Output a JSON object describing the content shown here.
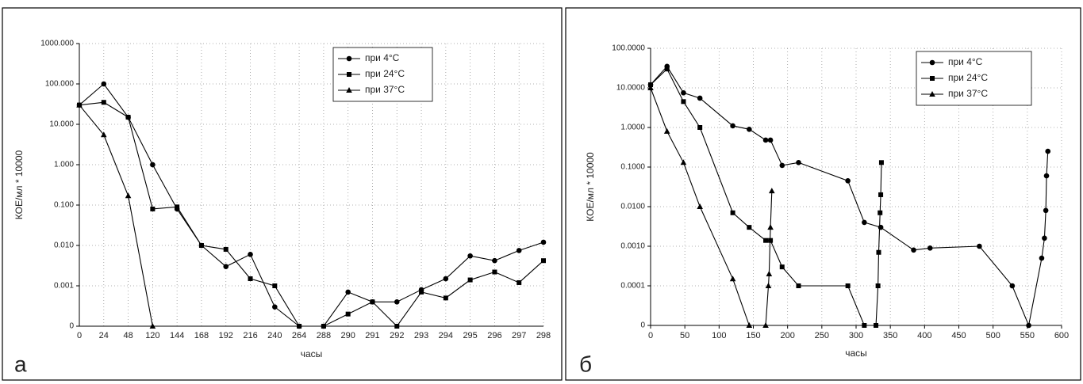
{
  "chart_data": [
    {
      "type": "line",
      "panel_label": "а",
      "x_label": "часы",
      "y_label": "КОЕ/мл * 10000",
      "categories": [
        "0",
        "24",
        "48",
        "120",
        "144",
        "168",
        "192",
        "216",
        "240",
        "264",
        "288",
        "290",
        "291",
        "292",
        "293",
        "294",
        "295",
        "296",
        "297",
        "298"
      ],
      "ylim": [
        0,
        1000
      ],
      "log_scale": true,
      "grid": true,
      "legend": "top-right",
      "yticks": [
        {
          "value": 1000,
          "label": "1000.000"
        },
        {
          "value": 100,
          "label": "100.000"
        },
        {
          "value": 10,
          "label": "10.000"
        },
        {
          "value": 1,
          "label": "1.000"
        },
        {
          "value": 0.1,
          "label": "0.100"
        },
        {
          "value": 0.01,
          "label": "0.010"
        },
        {
          "value": 0.001,
          "label": "0.001"
        },
        0
      ],
      "series": [
        {
          "name": "при 4°C",
          "color": "#000000",
          "marker": "circle",
          "values": [
            30,
            100,
            15,
            1.0,
            0.08,
            0.01,
            0.003,
            0.006,
            0.0003,
            0,
            0,
            0.0007,
            0.0004,
            0.0004,
            0.0008,
            0.0015,
            0.0055,
            0.0042,
            0.0075,
            0.012
          ]
        },
        {
          "name": "при 24°C",
          "color": "#000000",
          "marker": "square",
          "values": [
            30,
            35,
            15,
            0.08,
            0.09,
            0.01,
            0.008,
            0.0015,
            0.001,
            0,
            0,
            0.0002,
            0.0004,
            0,
            0.0007,
            0.0005,
            0.0014,
            0.0022,
            0.0012,
            0.0042
          ]
        },
        {
          "name": "при 37°C",
          "color": "#000000",
          "marker": "triangle",
          "values": [
            30,
            5.5,
            0.17,
            0,
            null,
            null,
            null,
            null,
            null,
            null,
            null,
            null,
            null,
            null,
            null,
            null,
            null,
            null,
            null,
            null
          ]
        }
      ]
    },
    {
      "type": "line",
      "panel_label": "б",
      "x_label": "часы",
      "y_label": "КОЕ/мл * 10000",
      "xlim": [
        0,
        600
      ],
      "xticks": [
        0,
        50,
        100,
        150,
        200,
        250,
        300,
        350,
        400,
        450,
        500,
        550,
        600
      ],
      "ylim": [
        0,
        100
      ],
      "log_scale": true,
      "grid": true,
      "legend": "top-right",
      "yticks": [
        {
          "value": 100,
          "label": "100.0000"
        },
        {
          "value": 10,
          "label": "10.0000"
        },
        {
          "value": 1,
          "label": "1.0000"
        },
        {
          "value": 0.1,
          "label": "0.1000"
        },
        {
          "value": 0.01,
          "label": "0.0100"
        },
        {
          "value": 0.001,
          "label": "0.0010"
        },
        {
          "value": 0.0001,
          "label": "0.0001"
        },
        0
      ],
      "series": [
        {
          "name": "при 4°C",
          "color": "#000000",
          "marker": "circle",
          "x": [
            0,
            24,
            48,
            72,
            120,
            144,
            168,
            175,
            192,
            216,
            288,
            312,
            336,
            384,
            408,
            480,
            528,
            552,
            571,
            575,
            577,
            578,
            580
          ],
          "values": [
            12,
            35,
            7.5,
            5.5,
            1.1,
            0.9,
            0.48,
            0.48,
            0.11,
            0.13,
            0.045,
            0.004,
            0.003,
            0.0008,
            0.0009,
            0.001,
            0.0001,
            0,
            0.0005,
            0.0016,
            0.008,
            0.06,
            0.25
          ]
        },
        {
          "name": "при 24°C",
          "color": "#000000",
          "marker": "square",
          "x": [
            0,
            24,
            48,
            72,
            120,
            144,
            168,
            175,
            192,
            216,
            288,
            312,
            329,
            332,
            333,
            335,
            336,
            337
          ],
          "values": [
            12,
            30,
            4.5,
            1.0,
            0.007,
            0.003,
            0.0014,
            0.0014,
            0.0003,
            0.0001,
            0.0001,
            0,
            0,
            0.0001,
            0.0007,
            0.007,
            0.02,
            0.13
          ]
        },
        {
          "name": "при 37°C",
          "color": "#000000",
          "marker": "triangle",
          "x": [
            0,
            24,
            48,
            72,
            120,
            144,
            168,
            172,
            173,
            175,
            177
          ],
          "values": [
            10,
            0.8,
            0.13,
            0.01,
            0.00015,
            0,
            0,
            0.0001,
            0.0002,
            0.003,
            0.025
          ]
        }
      ]
    }
  ]
}
